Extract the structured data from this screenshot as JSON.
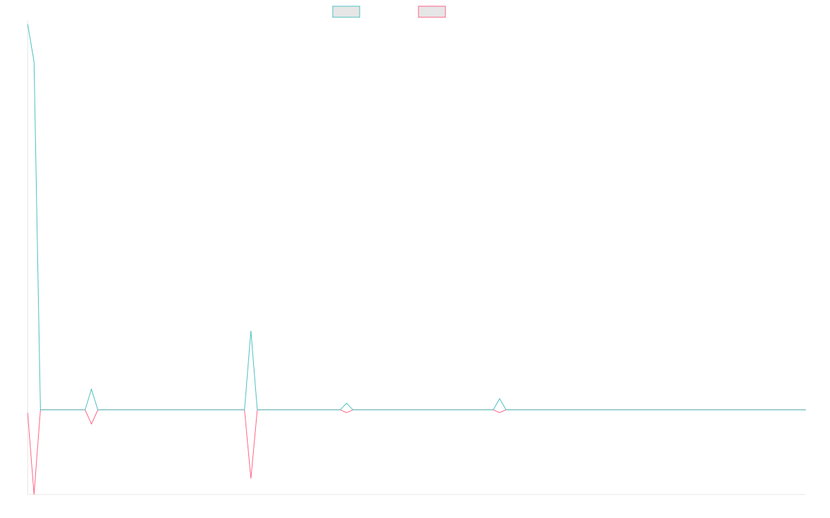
{
  "chart_data": {
    "type": "line",
    "title": "",
    "xlabel": "",
    "ylabel": "",
    "grid": false,
    "legend": "top-center",
    "colors": {
      "series_a": "#4bc0c0",
      "series_b": "#ff6384",
      "legend_fill": "#e6e6e6",
      "axis": "#e6e6e6"
    },
    "x": [
      0,
      1,
      2,
      3,
      4,
      5,
      6,
      7,
      8,
      9,
      10,
      11,
      12,
      13,
      14,
      15,
      16,
      17,
      18,
      19,
      20,
      21,
      22,
      23,
      24,
      25,
      26,
      27,
      28,
      29,
      30,
      31,
      32,
      33,
      34,
      35,
      36,
      37,
      38,
      39,
      40,
      41,
      42,
      43,
      44,
      45,
      46,
      47,
      48,
      49,
      50,
      51,
      52,
      53,
      54,
      55,
      56,
      57,
      58,
      59,
      60,
      61,
      62,
      63,
      64,
      65,
      66,
      67,
      68,
      69,
      70,
      71,
      72,
      73,
      74,
      75,
      76,
      77,
      78,
      79,
      80,
      81,
      82,
      83,
      84,
      85,
      86,
      87,
      88,
      89,
      90,
      91,
      92,
      93,
      94,
      95,
      96,
      97,
      98,
      99,
      100,
      101,
      102,
      103,
      104,
      105,
      106,
      107,
      108,
      109,
      110,
      111,
      112,
      113,
      114,
      115,
      116,
      117,
      118,
      119,
      120,
      121,
      122
    ],
    "ylim": [
      -4.5,
      20.5
    ],
    "series": [
      {
        "values": [
          20.5,
          18.5,
          0,
          0,
          0,
          0,
          0,
          0,
          0,
          0,
          1.1,
          0,
          0,
          0,
          0,
          0,
          0,
          0,
          0,
          0,
          0,
          0,
          0,
          0,
          0,
          0,
          0,
          0,
          0,
          0,
          0,
          0,
          0,
          0,
          0,
          4.2,
          0,
          0,
          0,
          0,
          0,
          0,
          0,
          0,
          0,
          0,
          0,
          0,
          0,
          0,
          0.35,
          0,
          0,
          0,
          0,
          0,
          0,
          0,
          0,
          0,
          0,
          0,
          0,
          0,
          0,
          0,
          0,
          0,
          0,
          0,
          0,
          0,
          0,
          0,
          0.6,
          0,
          0,
          0,
          0,
          0,
          0,
          0,
          0,
          0,
          0,
          0,
          0,
          0,
          0,
          0,
          0,
          0,
          0,
          0,
          0,
          0,
          0,
          0,
          0,
          0,
          0,
          0,
          0,
          0,
          0,
          0,
          0,
          0,
          0,
          0,
          0,
          0,
          0,
          0,
          0,
          0,
          0,
          0,
          0,
          0,
          0,
          0,
          0
        ]
      },
      {
        "values": [
          -0.15,
          -4.5,
          0,
          0,
          0,
          0,
          0,
          0,
          0,
          0,
          -0.75,
          0,
          0,
          0,
          0,
          0,
          0,
          0,
          0,
          0,
          0,
          0,
          0,
          0,
          0,
          0,
          0,
          0,
          0,
          0,
          0,
          0,
          0,
          0,
          0,
          -3.65,
          0,
          0,
          0,
          0,
          0,
          0,
          0,
          0,
          0,
          0,
          0,
          0,
          0,
          0,
          -0.15,
          0,
          0,
          0,
          0,
          0,
          0,
          0,
          0,
          0,
          0,
          0,
          0,
          0,
          0,
          0,
          0,
          0,
          0,
          0,
          0,
          0,
          0,
          0,
          -0.15,
          0,
          0,
          0,
          0,
          0,
          0,
          0,
          0,
          0,
          0,
          0,
          0,
          0,
          0,
          0,
          0,
          0,
          0,
          0,
          0,
          0,
          0,
          0,
          0,
          0,
          0,
          0,
          0,
          0,
          0,
          0,
          0,
          0,
          0,
          0,
          0,
          0,
          0,
          0,
          0,
          0,
          0,
          0,
          0,
          0,
          0,
          0,
          0
        ]
      }
    ]
  }
}
